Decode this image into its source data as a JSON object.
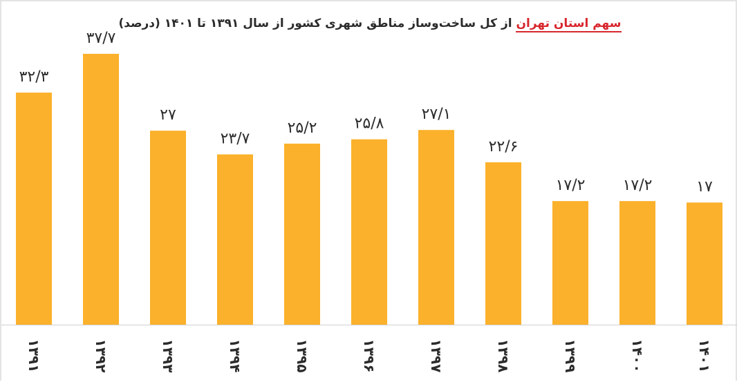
{
  "chart_data": {
    "type": "bar",
    "title_highlight": "سهم استان تهران",
    "title_rest": "از کل ساخت‌وساز مناطق شهری کشور از سال ۱۳۹۱ تا ۱۴۰۱ (درصد)",
    "categories": [
      "۱۳۹۱",
      "۱۳۹۲",
      "۱۳۹۳",
      "۱۳۹۴",
      "۱۳۹۵",
      "۱۳۹۶",
      "۱۳۹۷",
      "۱۳۹۸",
      "۱۳۹۹",
      "۱۴۰۰",
      "۱۴۰۱"
    ],
    "values": [
      32.3,
      37.7,
      27,
      23.7,
      25.2,
      25.8,
      27.1,
      22.6,
      17.2,
      17.2,
      17
    ],
    "value_labels": [
      "۳۲/۳",
      "۳۷/۷",
      "۲۷",
      "۲۳/۷",
      "۲۵/۲",
      "۲۵/۸",
      "۲۷/۱",
      "۲۲/۶",
      "۱۷/۲",
      "۱۷/۲",
      "۱۷"
    ],
    "bar_color": "#fbb12b",
    "text_color": "#2b2b2b",
    "ylim": [
      0,
      40
    ],
    "grid": false
  }
}
